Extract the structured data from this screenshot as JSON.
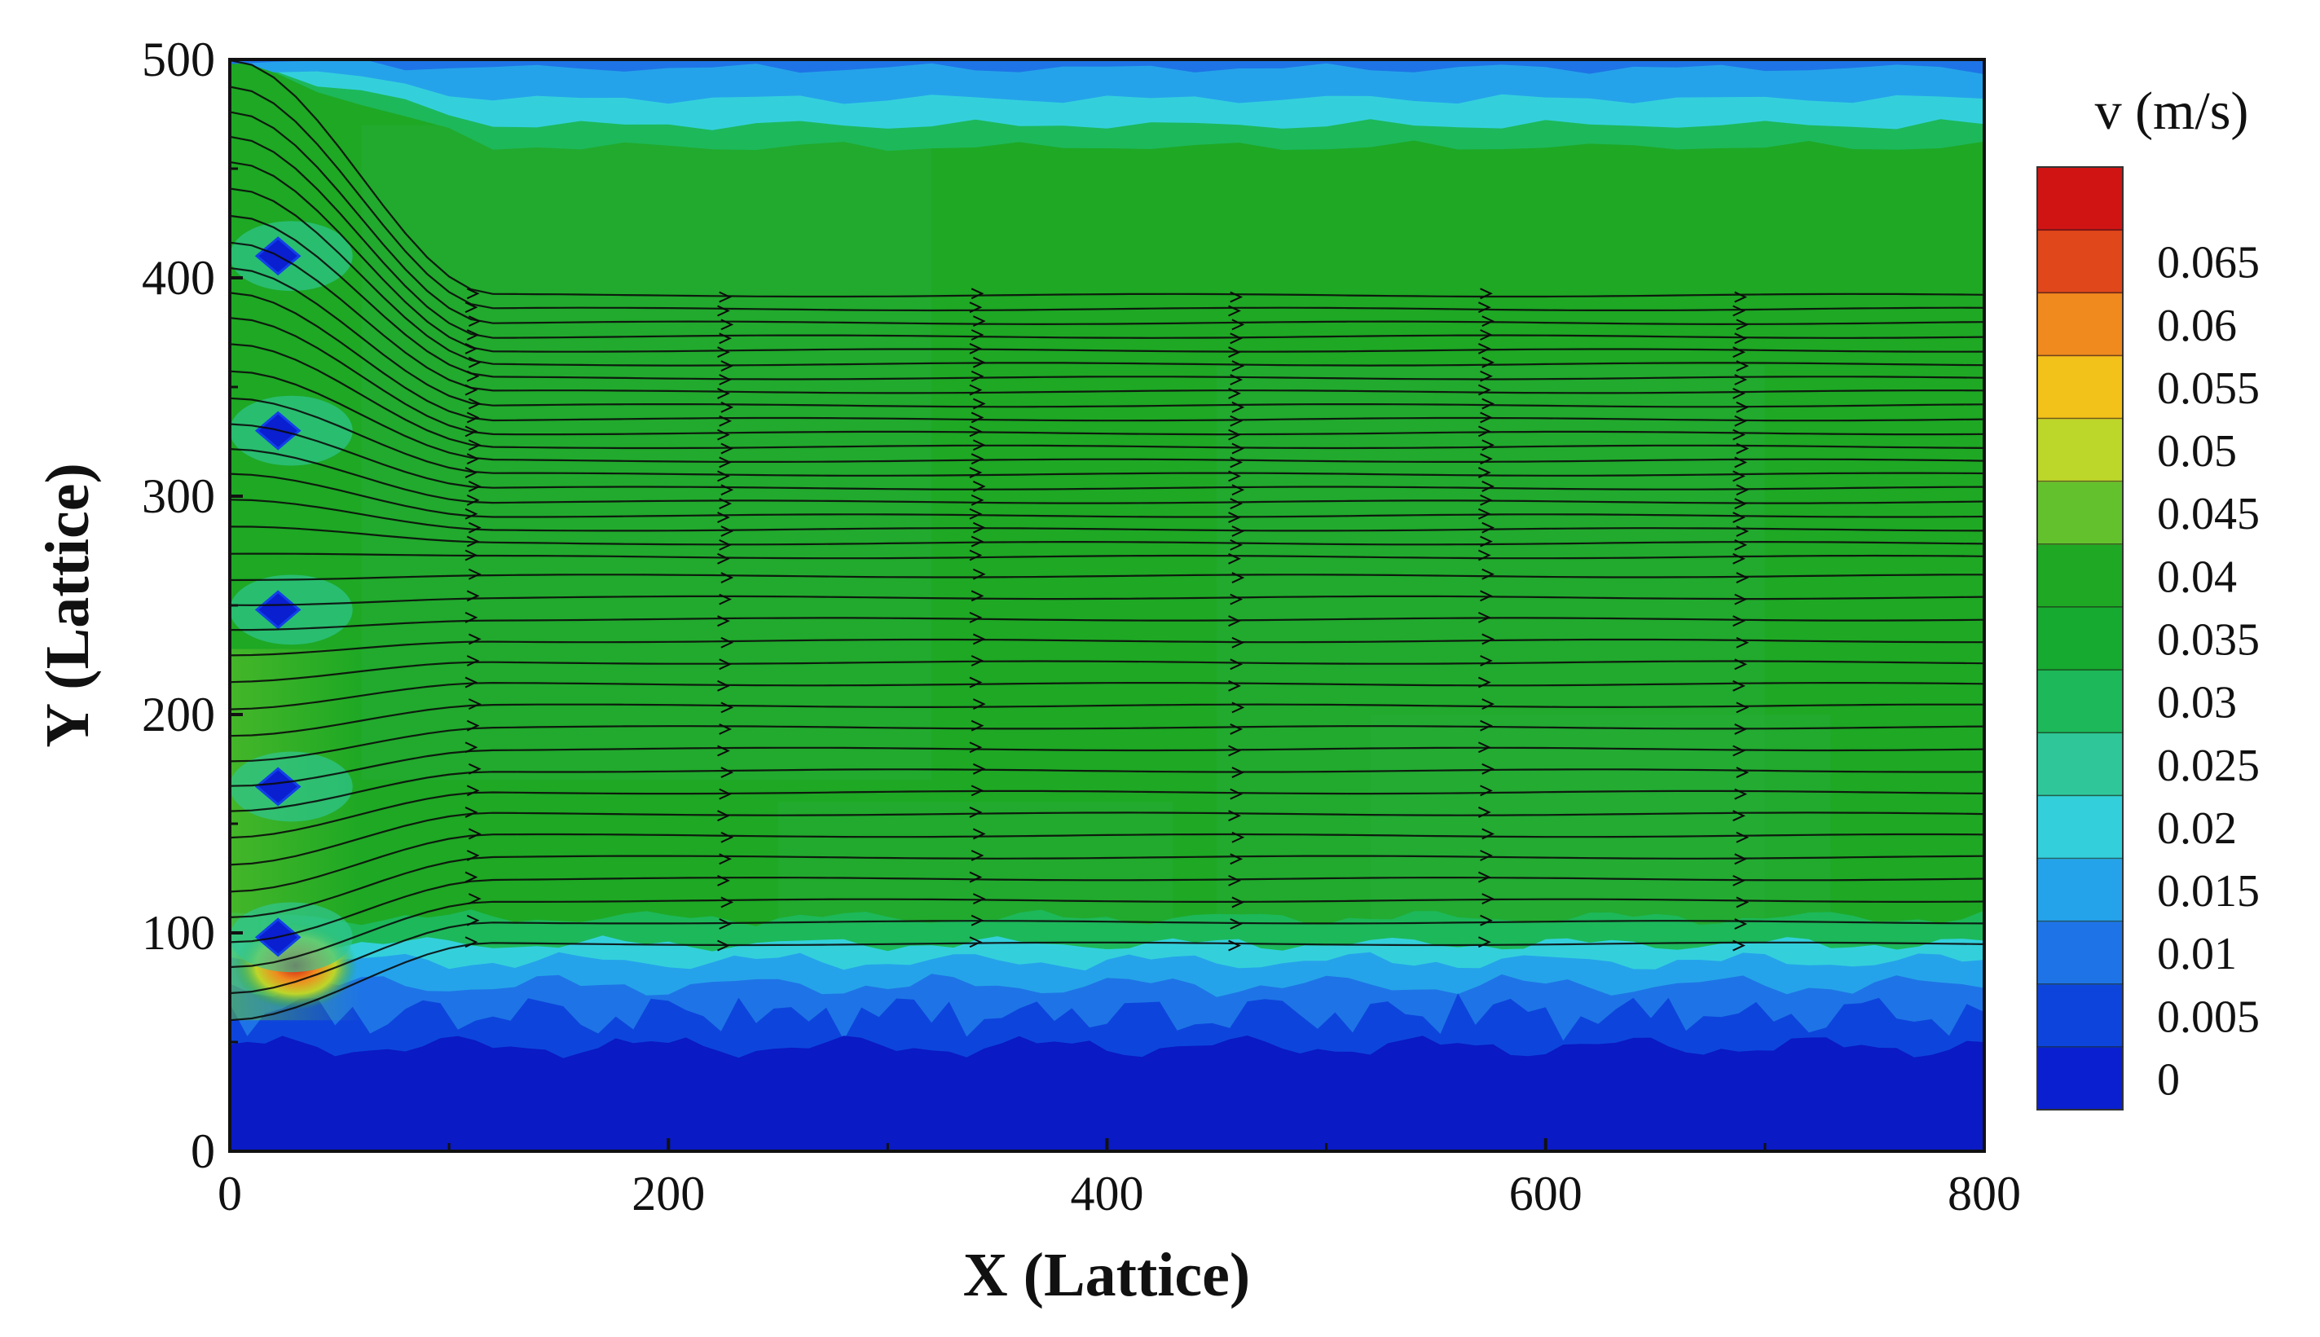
{
  "chart_data": {
    "type": "heatmap",
    "title": "",
    "xlabel": "X (Lattice)",
    "ylabel": "Y (Lattice)",
    "xlim": [
      0,
      800
    ],
    "ylim": [
      0,
      500
    ],
    "x_ticks": [
      0,
      200,
      400,
      600,
      800
    ],
    "y_ticks": [
      0,
      100,
      200,
      300,
      400,
      500
    ],
    "x_tick_labels": [
      "0",
      "200",
      "400",
      "600",
      "800"
    ],
    "y_tick_labels": [
      "0",
      "100",
      "200",
      "300",
      "400",
      "500"
    ],
    "field": "v (m/s)",
    "colorbar": {
      "title": "v (m/s)",
      "levels": [
        0,
        0.005,
        0.01,
        0.015,
        0.02,
        0.025,
        0.03,
        0.035,
        0.04,
        0.045,
        0.05,
        0.055,
        0.06,
        0.065
      ],
      "labels": [
        "0",
        "0.005",
        "0.01",
        "0.015",
        "0.02",
        "0.025",
        "0.03",
        "0.035",
        "0.04",
        "0.045",
        "0.05",
        "0.055",
        "0.06",
        "0.065"
      ],
      "colors": [
        "#0a1fd0",
        "#0d45dc",
        "#1e74e6",
        "#25a3ea",
        "#33d0dc",
        "#2fc79a",
        "#1db85a",
        "#16aa30",
        "#1ea824",
        "#63c12e",
        "#bdd62a",
        "#f2c21a",
        "#f08a1e",
        "#e0471a",
        "#d01414"
      ]
    },
    "obstacles": [
      {
        "x": 22,
        "y": 410
      },
      {
        "x": 22,
        "y": 330
      },
      {
        "x": 22,
        "y": 248
      },
      {
        "x": 22,
        "y": 167
      },
      {
        "x": 22,
        "y": 98
      }
    ],
    "low_velocity_layer": {
      "y_top": 70
    },
    "boundary_band": {
      "y_bottom": 70,
      "y_top": 95
    },
    "top_band": {
      "y_bottom": 470,
      "y_top": 500
    },
    "core_velocity": 0.035,
    "peak_velocity_region": {
      "x": 30,
      "y": 85,
      "v": 0.065
    },
    "streamline_count": 38,
    "grid": false
  }
}
